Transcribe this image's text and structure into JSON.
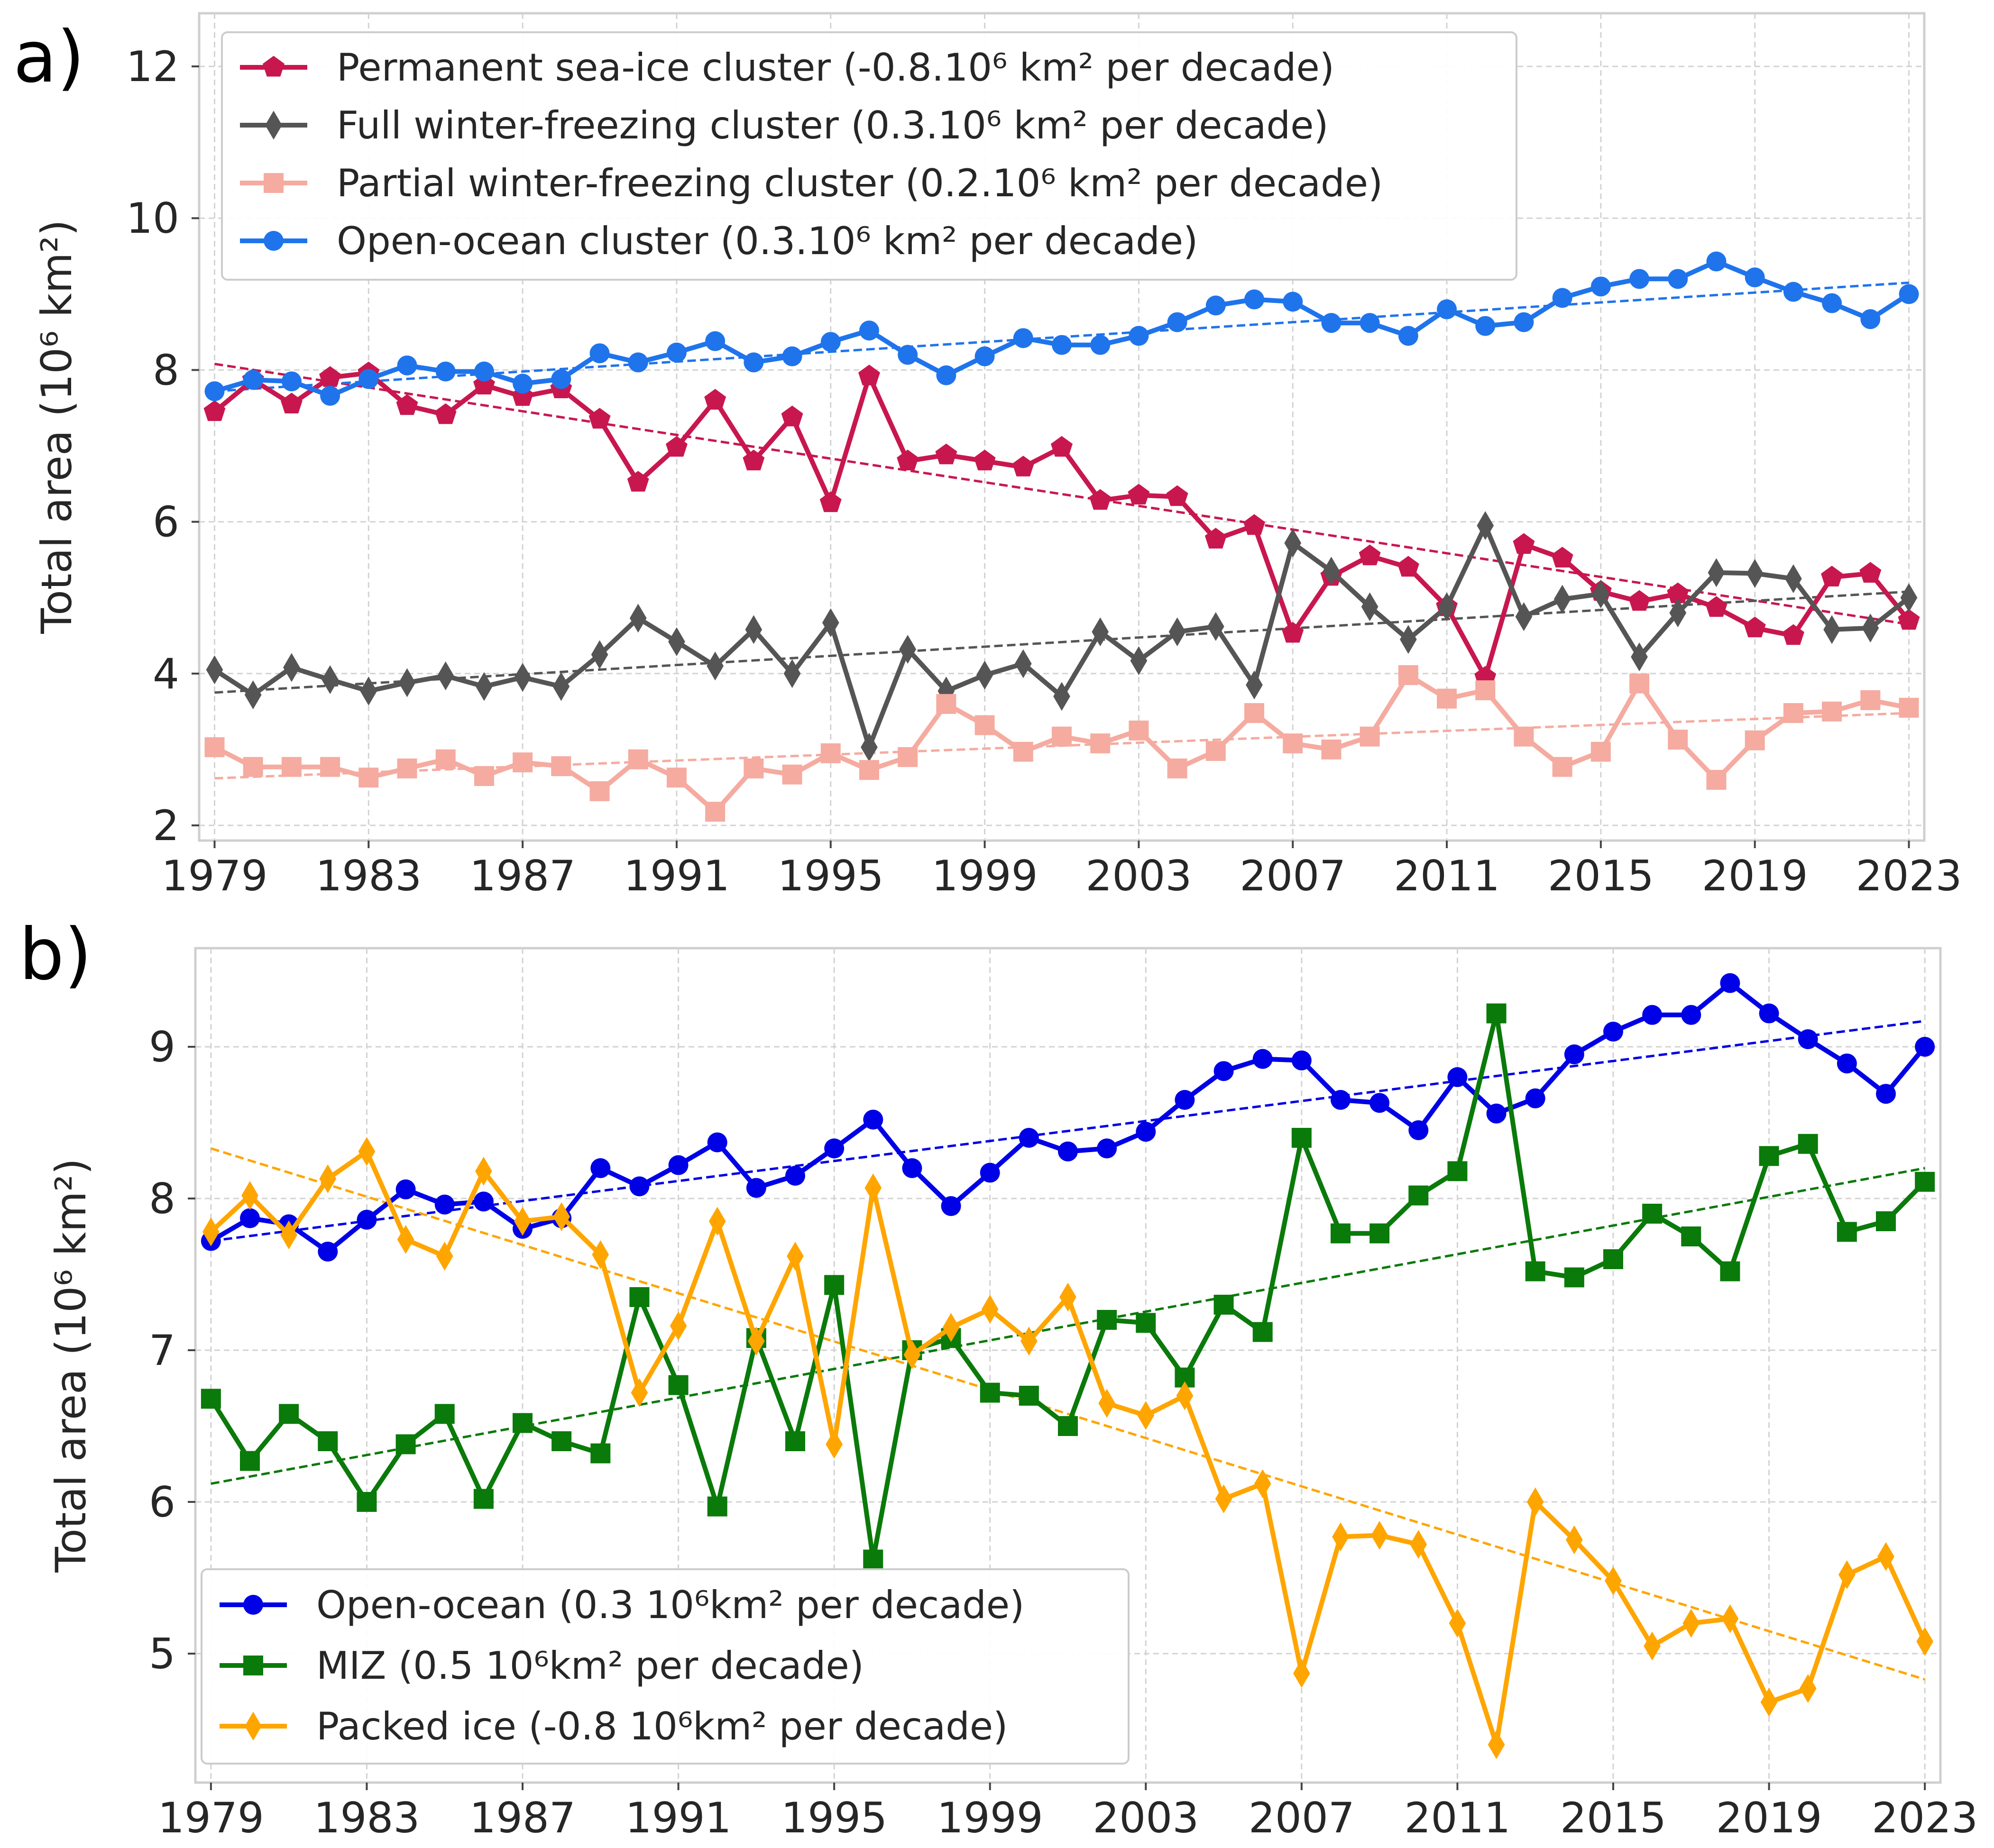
{
  "chart_data": [
    {
      "panel_label": "a)",
      "type": "line",
      "title": "",
      "xlabel": "",
      "ylabel": "Total area (10⁶ km²)",
      "xlim": [
        1978.6,
        2023.4
      ],
      "ylim": [
        1.8,
        12.7
      ],
      "xticks": [
        1979,
        1983,
        1987,
        1991,
        1995,
        1999,
        2003,
        2007,
        2011,
        2015,
        2019,
        2023
      ],
      "yticks": [
        2,
        4,
        6,
        8,
        10,
        12
      ],
      "grid": true,
      "legend_position": "top-left",
      "x": [
        1979,
        1980,
        1981,
        1982,
        1983,
        1984,
        1985,
        1986,
        1987,
        1988,
        1989,
        1990,
        1991,
        1992,
        1993,
        1994,
        1995,
        1996,
        1997,
        1998,
        1999,
        2000,
        2001,
        2002,
        2003,
        2004,
        2005,
        2006,
        2007,
        2008,
        2009,
        2010,
        2011,
        2012,
        2013,
        2014,
        2015,
        2016,
        2017,
        2018,
        2019,
        2020,
        2021,
        2022,
        2023
      ],
      "series": [
        {
          "name": "Permanent sea-ice cluster  (-0.8.10⁶ km² per decade)",
          "color": "#c8174f",
          "marker": "pentagon",
          "values": [
            7.45,
            7.87,
            7.55,
            7.9,
            7.96,
            7.53,
            7.41,
            7.8,
            7.65,
            7.75,
            7.35,
            6.52,
            6.98,
            7.6,
            6.8,
            7.38,
            6.25,
            7.92,
            6.8,
            6.88,
            6.8,
            6.72,
            6.98,
            6.28,
            6.35,
            6.33,
            5.77,
            5.95,
            4.53,
            5.28,
            5.55,
            5.4,
            4.88,
            3.95,
            5.7,
            5.52,
            5.08,
            4.95,
            5.05,
            4.87,
            4.6,
            4.5,
            5.27,
            5.32,
            4.7
          ],
          "trend": [
            8.08,
            4.65
          ]
        },
        {
          "name": "Full winter-freezing cluster  (0.3.10⁶ km² per decade)",
          "color": "#555555",
          "marker": "diamond",
          "values": [
            4.05,
            3.72,
            4.08,
            3.92,
            3.77,
            3.88,
            3.97,
            3.83,
            3.95,
            3.83,
            4.25,
            4.73,
            4.42,
            4.1,
            4.58,
            4.0,
            4.67,
            3.03,
            4.32,
            3.77,
            3.98,
            4.13,
            3.7,
            4.55,
            4.17,
            4.55,
            4.62,
            3.85,
            5.72,
            5.35,
            4.88,
            4.45,
            4.88,
            5.95,
            4.75,
            4.98,
            5.05,
            4.22,
            4.8,
            5.33,
            5.32,
            5.25,
            4.58,
            4.6,
            5.0
          ],
          "trend": [
            3.75,
            5.08
          ]
        },
        {
          "name": "Partial winter-freezing cluster (0.2.10⁶ km² per decade)",
          "color": "#f5aba0",
          "marker": "square",
          "values": [
            3.03,
            2.77,
            2.77,
            2.77,
            2.63,
            2.75,
            2.87,
            2.65,
            2.83,
            2.78,
            2.45,
            2.87,
            2.63,
            2.18,
            2.75,
            2.67,
            2.95,
            2.73,
            2.9,
            3.6,
            3.32,
            2.97,
            3.17,
            3.08,
            3.25,
            2.75,
            2.98,
            3.48,
            3.08,
            3.0,
            3.17,
            3.98,
            3.67,
            3.78,
            3.17,
            2.77,
            2.97,
            3.87,
            3.13,
            2.6,
            3.12,
            3.48,
            3.5,
            3.65,
            3.55
          ],
          "trend": [
            2.62,
            3.48
          ]
        },
        {
          "name": "Open-ocean cluster (0.3.10⁶ km² per decade)",
          "color": "#1f74ec",
          "marker": "circle",
          "values": [
            7.72,
            7.87,
            7.85,
            7.66,
            7.88,
            8.06,
            7.98,
            7.98,
            7.82,
            7.88,
            8.22,
            8.1,
            8.23,
            8.38,
            8.1,
            8.18,
            8.37,
            8.52,
            8.2,
            7.93,
            8.18,
            8.42,
            8.33,
            8.33,
            8.45,
            8.63,
            8.85,
            8.93,
            8.9,
            8.62,
            8.62,
            8.45,
            8.8,
            8.58,
            8.63,
            8.95,
            9.1,
            9.2,
            9.2,
            9.43,
            9.22,
            9.03,
            8.88,
            8.67,
            9.0
          ],
          "trend": [
            7.72,
            9.15
          ]
        }
      ]
    },
    {
      "panel_label": "b)",
      "type": "line",
      "title": "",
      "xlabel": "",
      "ylabel": "Total area (10⁶ km²)",
      "xlim": [
        1978.6,
        2023.4
      ],
      "ylim": [
        4.15,
        9.65
      ],
      "xticks": [
        1979,
        1983,
        1987,
        1991,
        1995,
        1999,
        2003,
        2007,
        2011,
        2015,
        2019,
        2023
      ],
      "yticks": [
        5,
        6,
        7,
        8,
        9
      ],
      "grid": true,
      "legend_position": "bottom-left",
      "x": [
        1979,
        1980,
        1981,
        1982,
        1983,
        1984,
        1985,
        1986,
        1987,
        1988,
        1989,
        1990,
        1991,
        1992,
        1993,
        1994,
        1995,
        1996,
        1997,
        1998,
        1999,
        2000,
        2001,
        2002,
        2003,
        2004,
        2005,
        2006,
        2007,
        2008,
        2009,
        2010,
        2011,
        2012,
        2013,
        2014,
        2015,
        2016,
        2017,
        2018,
        2019,
        2020,
        2021,
        2022,
        2023
      ],
      "series": [
        {
          "name": "Open-ocean (0.3 10⁶km² per decade)",
          "color": "#0000e6",
          "marker": "circle",
          "values": [
            7.72,
            7.87,
            7.83,
            7.65,
            7.86,
            8.06,
            7.96,
            7.98,
            7.8,
            7.87,
            8.2,
            8.08,
            8.22,
            8.37,
            8.07,
            8.15,
            8.33,
            8.52,
            8.2,
            7.95,
            8.17,
            8.4,
            8.31,
            8.33,
            8.44,
            8.65,
            8.84,
            8.92,
            8.91,
            8.65,
            8.63,
            8.45,
            8.8,
            8.56,
            8.66,
            8.95,
            9.1,
            9.21,
            9.21,
            9.42,
            9.22,
            9.05,
            8.89,
            8.69,
            9.0
          ],
          "trend": [
            7.72,
            9.17
          ]
        },
        {
          "name": "MIZ (0.5 10⁶km² per decade)",
          "color": "#0a7a0a",
          "marker": "square",
          "values": [
            6.68,
            6.27,
            6.58,
            6.4,
            6.0,
            6.38,
            6.58,
            6.02,
            6.52,
            6.4,
            6.32,
            7.35,
            6.77,
            5.97,
            7.08,
            6.4,
            7.43,
            5.62,
            7.0,
            7.08,
            6.72,
            6.7,
            6.5,
            7.2,
            7.18,
            6.82,
            7.3,
            7.12,
            8.4,
            7.77,
            7.77,
            8.02,
            8.18,
            9.22,
            7.52,
            7.48,
            7.6,
            7.9,
            7.75,
            7.52,
            8.28,
            8.36,
            7.78,
            7.85,
            8.11
          ],
          "trend": [
            6.12,
            8.2
          ]
        },
        {
          "name": "Packed ice (-0.8 10⁶km² per decade)",
          "color": "#ffa500",
          "marker": "diamond",
          "values": [
            7.78,
            8.02,
            7.76,
            8.13,
            8.31,
            7.73,
            7.62,
            8.18,
            7.85,
            7.88,
            7.63,
            6.72,
            7.16,
            7.85,
            7.06,
            7.62,
            6.38,
            8.07,
            6.97,
            7.15,
            7.27,
            7.06,
            7.35,
            6.65,
            6.57,
            6.7,
            6.02,
            6.12,
            4.87,
            5.77,
            5.78,
            5.72,
            5.2,
            4.4,
            6.0,
            5.75,
            5.48,
            5.05,
            5.2,
            5.23,
            4.68,
            4.77,
            5.52,
            5.64,
            5.08
          ],
          "trend": [
            8.33,
            4.83
          ]
        }
      ]
    }
  ]
}
